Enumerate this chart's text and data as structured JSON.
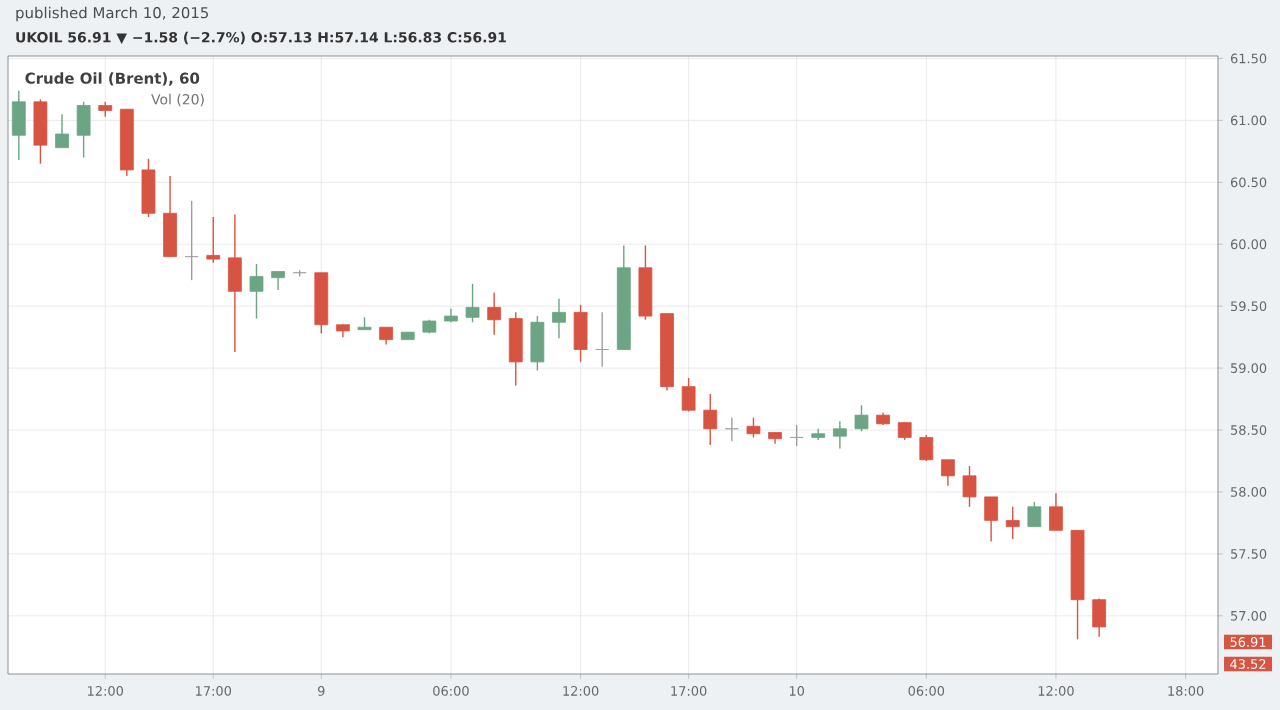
{
  "chart_data": {
    "type": "candlestick",
    "title": "Crude Oil (Brent), 60",
    "subtitle": "UKOIL 56.91 ▼ −1.58 (−2.7%) O:57.13 H:57.14 L:56.83 C:56.91",
    "annotations": [
      "published March 10, 2015",
      "Vol (20)",
      "56.91",
      "43.52"
    ],
    "categories": [
      null,
      null,
      null,
      null,
      "12:00",
      null,
      null,
      null,
      null,
      "17:00",
      null,
      null,
      null,
      null,
      "9",
      null,
      null,
      null,
      null,
      null,
      "06:00",
      null,
      null,
      null,
      null,
      null,
      "12:00",
      null,
      null,
      null,
      null,
      "17:00",
      null,
      null,
      null,
      null,
      "10",
      null,
      null,
      null,
      null,
      null,
      "06:00",
      null,
      null,
      null,
      null,
      null,
      "12:00",
      null,
      null,
      null,
      null,
      null,
      "18:00",
      null
    ],
    "ohlc": [
      [
        60.88,
        61.24,
        60.68,
        61.15
      ],
      [
        61.15,
        61.17,
        60.65,
        60.8
      ],
      [
        60.78,
        61.05,
        60.78,
        60.89
      ],
      [
        60.88,
        61.15,
        60.7,
        61.12
      ],
      [
        61.12,
        61.15,
        61.03,
        61.08
      ],
      [
        61.09,
        61.09,
        60.55,
        60.6
      ],
      [
        60.6,
        60.69,
        60.22,
        60.25
      ],
      [
        60.25,
        60.55,
        59.9,
        59.9
      ],
      [
        59.9,
        60.35,
        59.71,
        59.9
      ],
      [
        59.91,
        60.22,
        59.85,
        59.88
      ],
      [
        59.89,
        60.24,
        59.13,
        59.62
      ],
      [
        59.62,
        59.84,
        59.4,
        59.74
      ],
      [
        59.73,
        59.78,
        59.63,
        59.78
      ],
      [
        59.77,
        59.79,
        59.74,
        59.77
      ],
      [
        59.77,
        59.77,
        59.28,
        59.35
      ],
      [
        59.35,
        59.35,
        59.25,
        59.3
      ],
      [
        59.31,
        59.41,
        59.31,
        59.33
      ],
      [
        59.33,
        59.33,
        59.19,
        59.23
      ],
      [
        59.23,
        59.29,
        59.23,
        59.29
      ],
      [
        59.29,
        59.39,
        59.28,
        59.38
      ],
      [
        59.38,
        59.48,
        59.37,
        59.42
      ],
      [
        59.41,
        59.68,
        59.37,
        59.49
      ],
      [
        59.49,
        59.61,
        59.27,
        59.39
      ],
      [
        59.4,
        59.45,
        58.86,
        59.05
      ],
      [
        59.05,
        59.42,
        58.98,
        59.37
      ],
      [
        59.37,
        59.56,
        59.24,
        59.45
      ],
      [
        59.45,
        59.51,
        59.05,
        59.15
      ],
      [
        59.15,
        59.45,
        59.01,
        59.15
      ],
      [
        59.15,
        59.99,
        59.15,
        59.81
      ],
      [
        59.81,
        59.99,
        59.39,
        59.42
      ],
      [
        59.44,
        59.44,
        58.82,
        58.85
      ],
      [
        58.85,
        58.92,
        58.65,
        58.66
      ],
      [
        58.66,
        58.79,
        58.38,
        58.51
      ],
      [
        58.51,
        58.6,
        58.41,
        58.51
      ],
      [
        58.53,
        58.6,
        58.44,
        58.47
      ],
      [
        58.48,
        58.48,
        58.39,
        58.43
      ],
      [
        58.44,
        58.54,
        58.37,
        58.44
      ],
      [
        58.44,
        58.51,
        58.42,
        58.47
      ],
      [
        58.45,
        58.57,
        58.35,
        58.51
      ],
      [
        58.51,
        58.7,
        58.49,
        58.62
      ],
      [
        58.62,
        58.64,
        58.54,
        58.55
      ],
      [
        58.56,
        58.56,
        58.42,
        58.44
      ],
      [
        58.44,
        58.46,
        58.25,
        58.26
      ],
      [
        58.26,
        58.26,
        58.05,
        58.13
      ],
      [
        58.13,
        58.21,
        57.88,
        57.96
      ],
      [
        57.96,
        57.96,
        57.6,
        57.77
      ],
      [
        57.77,
        57.88,
        57.62,
        57.72
      ],
      [
        57.72,
        57.92,
        57.72,
        57.88
      ],
      [
        57.88,
        57.99,
        57.69,
        57.69
      ],
      [
        57.69,
        57.69,
        56.81,
        57.13
      ],
      [
        57.13,
        57.14,
        56.83,
        56.91
      ],
      null,
      null,
      null,
      null,
      null
    ],
    "colors": [
      "#6ba583",
      "#d75442",
      "#6ba583",
      "#6ba583",
      "#d75442",
      "#d75442",
      "#d75442",
      "#d75442",
      "#9e9e9e",
      "#d75442",
      "#d75442",
      "#6ba583",
      "#6ba583",
      "#9e9e9e",
      "#d75442",
      "#d75442",
      "#6ba583",
      "#d75442",
      "#6ba583",
      "#6ba583",
      "#6ba583",
      "#6ba583",
      "#d75442",
      "#d75442",
      "#6ba583",
      "#6ba583",
      "#d75442",
      "#9e9e9e",
      "#6ba583",
      "#d75442",
      "#d75442",
      "#d75442",
      "#d75442",
      "#9e9e9e",
      "#d75442",
      "#d75442",
      "#9e9e9e",
      "#6ba583",
      "#6ba583",
      "#6ba583",
      "#d75442",
      "#d75442",
      "#d75442",
      "#d75442",
      "#d75442",
      "#d75442",
      "#d75442",
      "#6ba583",
      "#d75442",
      "#d75442",
      "#d75442",
      null,
      null,
      null,
      null,
      null
    ],
    "ylim": [
      56.53,
      61.52
    ],
    "yticks": [
      {
        "value": 57,
        "label": "57.00"
      },
      {
        "value": 57.5,
        "label": "57.50"
      },
      {
        "value": 58,
        "label": "58.00"
      },
      {
        "value": 58.5,
        "label": "58.50"
      },
      {
        "value": 59,
        "label": "59.00"
      },
      {
        "value": 59.5,
        "label": "59.50"
      },
      {
        "value": 60,
        "label": "60.00"
      },
      {
        "value": 60.5,
        "label": "60.50"
      },
      {
        "value": 61,
        "label": "61.00"
      },
      {
        "value": 61.5,
        "label": "61.50"
      }
    ],
    "grid": true
  }
}
